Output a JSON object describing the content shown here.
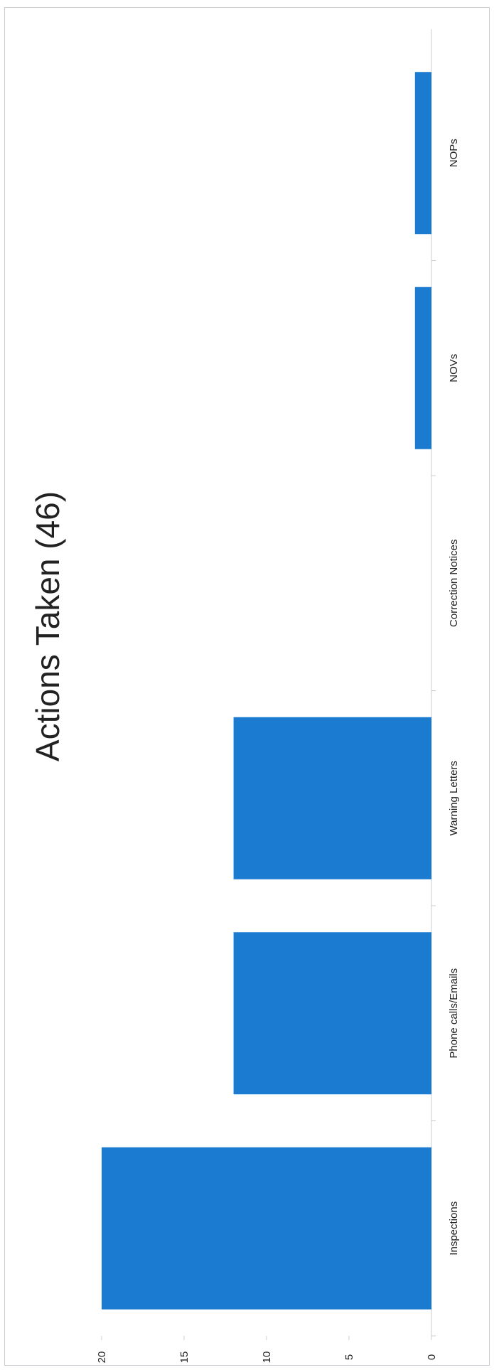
{
  "chart_data": {
    "type": "bar",
    "title": "Actions Taken (46)",
    "categories": [
      "Inspections",
      "Phone calls/Emails",
      "Warning Letters",
      "Correction Notices",
      "NOVs",
      "NOPs"
    ],
    "values": [
      20,
      12,
      12,
      0,
      1,
      1
    ],
    "yticks": [
      "0",
      "5",
      "10",
      "15",
      "20"
    ],
    "ylim": [
      0,
      20
    ],
    "xlabel": "",
    "ylabel": "",
    "grid": false,
    "legend": "none",
    "bar_color": "#1a7bd1",
    "orientation": "rotated-90"
  }
}
